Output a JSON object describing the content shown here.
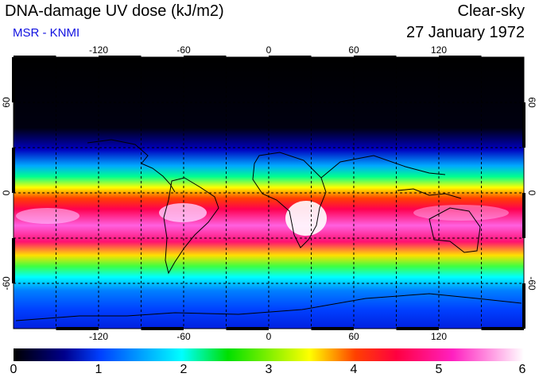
{
  "header": {
    "title": "DNA-damage UV dose (kJ/m2)",
    "source": "MSR - KNMI",
    "condition": "Clear-sky",
    "date": "27 January 1972"
  },
  "map": {
    "projection": "equirectangular",
    "lon_range": [
      -180,
      180
    ],
    "lat_range": [
      -90,
      90
    ],
    "lon_ticks": [
      "-120",
      "-60",
      "0",
      "60",
      "120"
    ],
    "lat_ticks": [
      "60",
      "0",
      "-60"
    ],
    "grid_lines": "dashed, every 30 degrees"
  },
  "colorbar": {
    "min": 0,
    "max": 6,
    "labels": [
      "0",
      "1",
      "2",
      "3",
      "4",
      "5",
      "6"
    ],
    "colors": [
      "#000000",
      "#0000c8",
      "#0060ff",
      "#00ffff",
      "#00e000",
      "#ffff00",
      "#ff8000",
      "#ff0040",
      "#ff20c0",
      "#ff90ff",
      "#ffffff"
    ]
  }
}
